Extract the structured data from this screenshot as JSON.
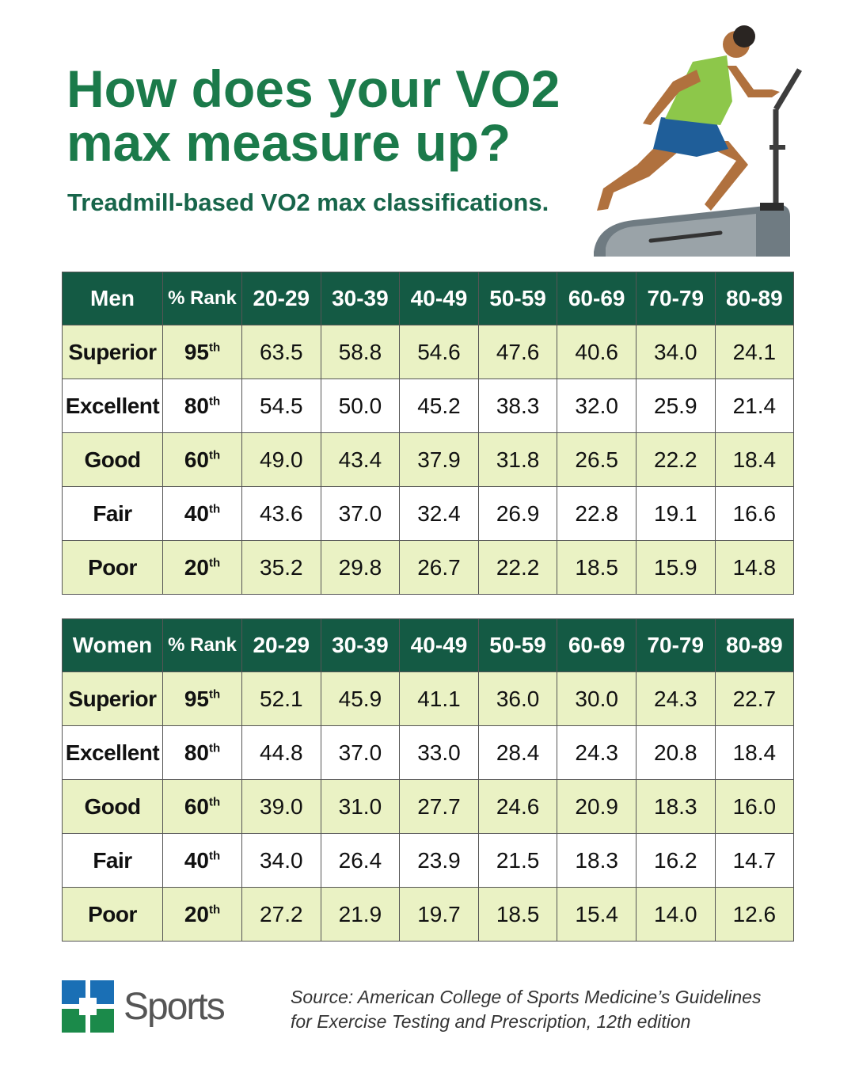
{
  "header": {
    "title": [
      "How does your VO2",
      "max measure up?"
    ],
    "subtitle": "Treadmill-based VO2 max classifications."
  },
  "tables": [
    {
      "columns": [
        "Men",
        "% Rank",
        "20-29",
        "30-39",
        "40-49",
        "50-59",
        "60-69",
        "70-79",
        "80-89"
      ],
      "rows": [
        {
          "label": "Superior",
          "rank": [
            "95",
            "th"
          ],
          "values": [
            "63.5",
            "58.8",
            "54.6",
            "47.6",
            "40.6",
            "34.0",
            "24.1"
          ]
        },
        {
          "label": "Excellent",
          "rank": [
            "80",
            "th"
          ],
          "values": [
            "54.5",
            "50.0",
            "45.2",
            "38.3",
            "32.0",
            "25.9",
            "21.4"
          ]
        },
        {
          "label": "Good",
          "rank": [
            "60",
            "th"
          ],
          "values": [
            "49.0",
            "43.4",
            "37.9",
            "31.8",
            "26.5",
            "22.2",
            "18.4"
          ]
        },
        {
          "label": "Fair",
          "rank": [
            "40",
            "th"
          ],
          "values": [
            "43.6",
            "37.0",
            "32.4",
            "26.9",
            "22.8",
            "19.1",
            "16.6"
          ]
        },
        {
          "label": "Poor",
          "rank": [
            "20",
            "th"
          ],
          "values": [
            "35.2",
            "29.8",
            "26.7",
            "22.2",
            "18.5",
            "15.9",
            "14.8"
          ]
        }
      ]
    },
    {
      "columns": [
        "Women",
        "% Rank",
        "20-29",
        "30-39",
        "40-49",
        "50-59",
        "60-69",
        "70-79",
        "80-89"
      ],
      "rows": [
        {
          "label": "Superior",
          "rank": [
            "95",
            "th"
          ],
          "values": [
            "52.1",
            "45.9",
            "41.1",
            "36.0",
            "30.0",
            "24.3",
            "22.7"
          ]
        },
        {
          "label": "Excellent",
          "rank": [
            "80",
            "th"
          ],
          "values": [
            "44.8",
            "37.0",
            "33.0",
            "28.4",
            "24.3",
            "20.8",
            "18.4"
          ]
        },
        {
          "label": "Good",
          "rank": [
            "60",
            "th"
          ],
          "values": [
            "39.0",
            "31.0",
            "27.7",
            "24.6",
            "20.9",
            "18.3",
            "16.0"
          ]
        },
        {
          "label": "Fair",
          "rank": [
            "40",
            "th"
          ],
          "values": [
            "34.0",
            "26.4",
            "23.9",
            "21.5",
            "18.3",
            "16.2",
            "14.7"
          ]
        },
        {
          "label": "Poor",
          "rank": [
            "20",
            "th"
          ],
          "values": [
            "27.2",
            "21.9",
            "19.7",
            "18.5",
            "15.4",
            "14.0",
            "12.6"
          ]
        }
      ]
    }
  ],
  "footer": {
    "logo_text": "Sports",
    "source": [
      "Source: American College of Sports Medicine’s Guidelines",
      "for Exercise Testing and Prescription, 12th edition"
    ]
  }
}
